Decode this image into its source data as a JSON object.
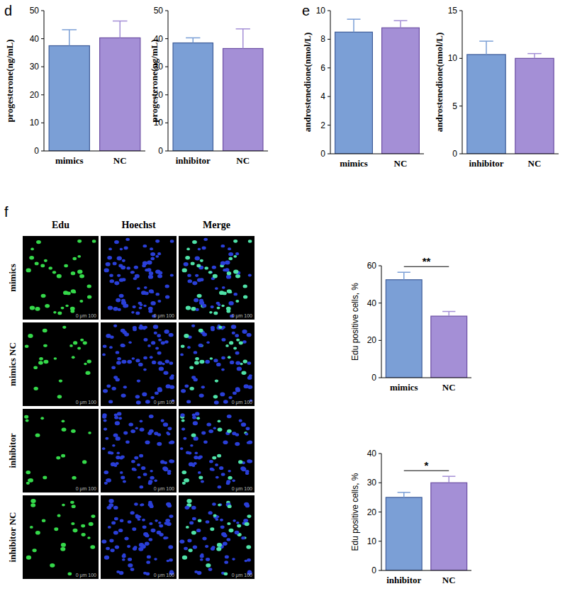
{
  "chart_data": [
    {
      "type": "bar",
      "ylabel": "progesterone(ng/mL)",
      "categories": [
        "mimics",
        "NC"
      ],
      "values": [
        37.5,
        40.3
      ],
      "errors": [
        5.7,
        6.0
      ],
      "colors": [
        "#7b9fd6",
        "#a48fd6"
      ],
      "ylim": [
        0,
        50
      ],
      "yticks": [
        0,
        10,
        20,
        30,
        40,
        50
      ]
    },
    {
      "type": "bar",
      "ylabel": "progesterone(ng/mL)",
      "categories": [
        "inhibitor",
        "NC"
      ],
      "values": [
        38.5,
        36.5
      ],
      "errors": [
        1.8,
        7.0
      ],
      "colors": [
        "#7b9fd6",
        "#a48fd6"
      ],
      "ylim": [
        0,
        50
      ],
      "yticks": [
        0,
        10,
        20,
        30,
        40,
        50
      ]
    },
    {
      "type": "bar",
      "ylabel": "androstenedione(nmol/L)",
      "categories": [
        "mimics",
        "NC"
      ],
      "values": [
        8.5,
        8.8
      ],
      "errors": [
        0.9,
        0.5
      ],
      "colors": [
        "#7b9fd6",
        "#a48fd6"
      ],
      "ylim": [
        0,
        10
      ],
      "yticks": [
        0,
        2,
        4,
        6,
        8,
        10
      ]
    },
    {
      "type": "bar",
      "ylabel": "androstenedione(nmol/L)",
      "categories": [
        "inhibitor",
        "NC"
      ],
      "values": [
        10.4,
        10.0
      ],
      "errors": [
        1.4,
        0.5
      ],
      "colors": [
        "#7b9fd6",
        "#a48fd6"
      ],
      "ylim": [
        0,
        15
      ],
      "yticks": [
        0,
        5,
        10,
        15
      ]
    },
    {
      "type": "bar",
      "ylabel": "Edu positive cells, %",
      "categories": [
        "mimics",
        "NC"
      ],
      "values": [
        52.5,
        33.0
      ],
      "errors": [
        4.0,
        2.5
      ],
      "colors": [
        "#7b9fd6",
        "#a48fd6"
      ],
      "ylim": [
        0,
        60
      ],
      "yticks": [
        0,
        20,
        40,
        60
      ],
      "annotation": "**"
    },
    {
      "type": "bar",
      "ylabel": "Edu positive cells, %",
      "categories": [
        "inhibitor",
        "NC"
      ],
      "values": [
        25.0,
        30.0
      ],
      "errors": [
        1.7,
        2.2
      ],
      "colors": [
        "#7b9fd6",
        "#a48fd6"
      ],
      "ylim": [
        0,
        40
      ],
      "yticks": [
        0,
        10,
        20,
        30,
        40
      ],
      "annotation": "*"
    }
  ],
  "panel_labels": [
    "d",
    "e",
    "f"
  ],
  "image_grid": {
    "columns": [
      "Edu",
      "Hoechst",
      "Merge"
    ],
    "rows": [
      "mimics",
      "mimics NC",
      "inhibitor",
      "inhibitor NC"
    ],
    "scale_bar": "0 μm 100"
  }
}
